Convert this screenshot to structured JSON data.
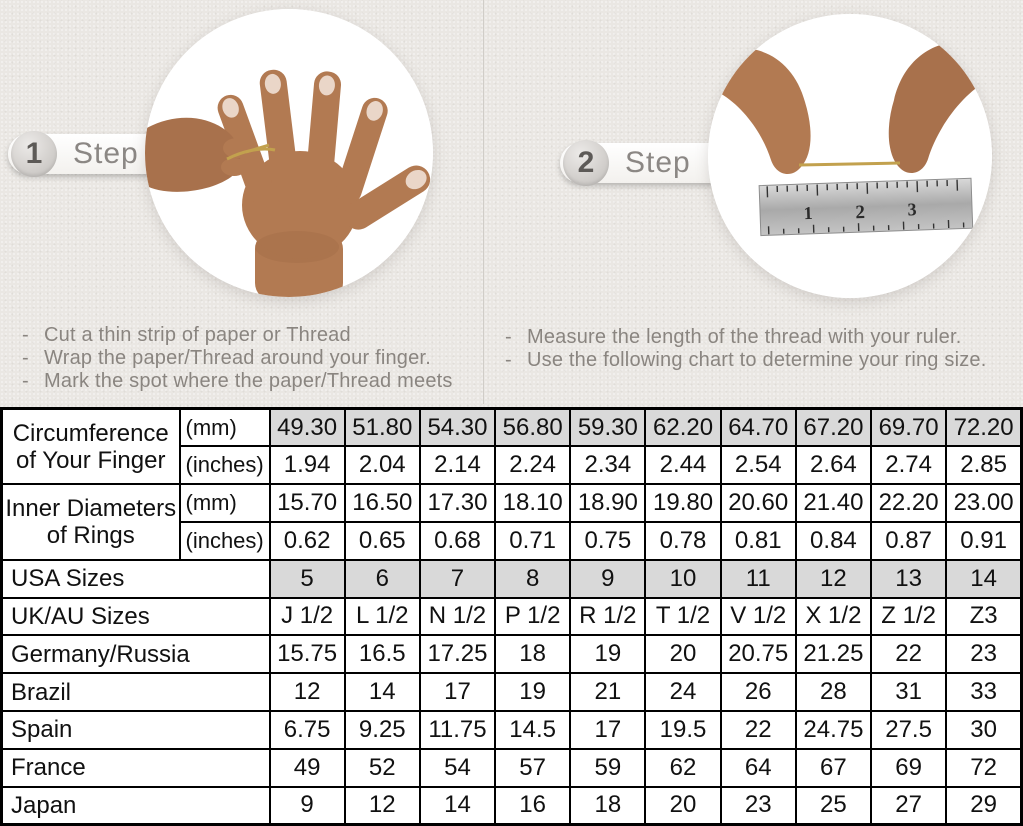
{
  "dash": "-",
  "steps": [
    {
      "number": "1",
      "label": "Step",
      "bullets": [
        "Cut a thin strip of paper or Thread",
        "Wrap the paper/Thread around your finger.",
        "Mark the spot where the paper/Thread meets"
      ]
    },
    {
      "number": "2",
      "label": "Step",
      "bullets": [
        "Measure the length of the thread with your ruler.",
        "Use the following chart to determine your ring size."
      ]
    }
  ],
  "illustrations": {
    "step1": "hand-with-thread-wrapped-around-finger",
    "step2": "hands-measuring-thread-with-ruler",
    "ruler_numbers": [
      "1",
      "2",
      "3"
    ]
  },
  "colors": {
    "background": "#eae7e3",
    "table_highlight": "#d9d9d9",
    "table_border": "#000000",
    "thread_gold": "#c2a14e",
    "step_text_gray": "#8b8784"
  },
  "size_chart": {
    "rows": [
      {
        "label": [
          "Circumference",
          "of Your Finger"
        ],
        "label_rowspan": 2,
        "align": "center",
        "unit": "(mm)",
        "highlight": true,
        "values": [
          "49.30",
          "51.80",
          "54.30",
          "56.80",
          "59.30",
          "62.20",
          "64.70",
          "67.20",
          "69.70",
          "72.20"
        ]
      },
      {
        "unit": "(inches)",
        "highlight": false,
        "values": [
          "1.94",
          "2.04",
          "2.14",
          "2.24",
          "2.34",
          "2.44",
          "2.54",
          "2.64",
          "2.74",
          "2.85"
        ]
      },
      {
        "label": [
          "Inner Diameters",
          "of Rings"
        ],
        "label_rowspan": 2,
        "align": "center",
        "unit": "(mm)",
        "highlight": false,
        "values": [
          "15.70",
          "16.50",
          "17.30",
          "18.10",
          "18.90",
          "19.80",
          "20.60",
          "21.40",
          "22.20",
          "23.00"
        ]
      },
      {
        "unit": "(inches)",
        "highlight": false,
        "values": [
          "0.62",
          "0.65",
          "0.68",
          "0.71",
          "0.75",
          "0.78",
          "0.81",
          "0.84",
          "0.87",
          "0.91"
        ]
      },
      {
        "label": [
          "USA Sizes"
        ],
        "label_colspan": 2,
        "align": "left",
        "highlight": true,
        "values": [
          "5",
          "6",
          "7",
          "8",
          "9",
          "10",
          "11",
          "12",
          "13",
          "14"
        ]
      },
      {
        "label": [
          "UK/AU Sizes"
        ],
        "label_colspan": 2,
        "align": "left",
        "highlight": false,
        "values": [
          "J 1/2",
          "L 1/2",
          "N 1/2",
          "P 1/2",
          "R 1/2",
          "T 1/2",
          "V 1/2",
          "X 1/2",
          "Z 1/2",
          "Z3"
        ]
      },
      {
        "label": [
          "Germany/Russia"
        ],
        "label_colspan": 2,
        "align": "left",
        "highlight": false,
        "values": [
          "15.75",
          "16.5",
          "17.25",
          "18",
          "19",
          "20",
          "20.75",
          "21.25",
          "22",
          "23"
        ]
      },
      {
        "label": [
          "Brazil"
        ],
        "label_colspan": 2,
        "align": "left",
        "highlight": false,
        "values": [
          "12",
          "14",
          "17",
          "19",
          "21",
          "24",
          "26",
          "28",
          "31",
          "33"
        ]
      },
      {
        "label": [
          "Spain"
        ],
        "label_colspan": 2,
        "align": "left",
        "highlight": false,
        "values": [
          "6.75",
          "9.25",
          "11.75",
          "14.5",
          "17",
          "19.5",
          "22",
          "24.75",
          "27.5",
          "30"
        ]
      },
      {
        "label": [
          "France"
        ],
        "label_colspan": 2,
        "align": "left",
        "highlight": false,
        "values": [
          "49",
          "52",
          "54",
          "57",
          "59",
          "62",
          "64",
          "67",
          "69",
          "72"
        ]
      },
      {
        "label": [
          "Japan"
        ],
        "label_colspan": 2,
        "align": "left",
        "highlight": false,
        "values": [
          "9",
          "12",
          "14",
          "16",
          "18",
          "20",
          "23",
          "25",
          "27",
          "29"
        ]
      }
    ]
  }
}
